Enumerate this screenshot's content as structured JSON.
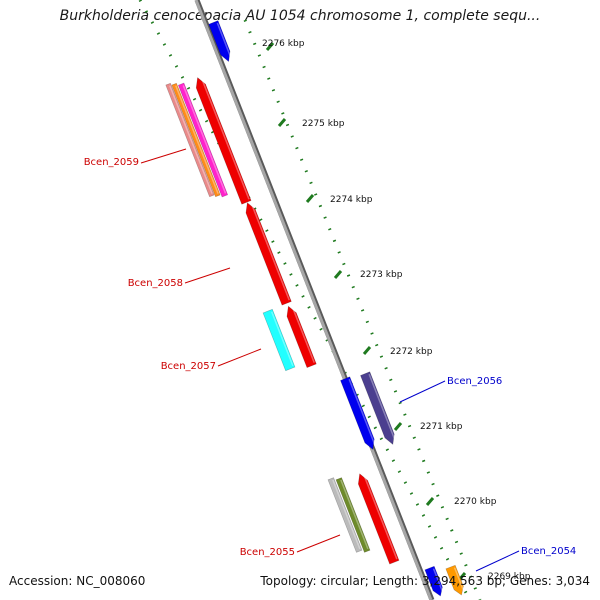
{
  "title": "Burkholderia cenocepacia AU 1054 chromosome 1, complete sequ...",
  "footer": {
    "accession": "Accession: NC_008060",
    "summary": "Topology: circular; Length: 3,294,563 bp; Genes: 3,034"
  },
  "colors": {
    "backbone": "#8c8c8c",
    "tick": "#1f7a1f",
    "forward_label": "#cc0000",
    "reverse_label": "#0000cc"
  },
  "kbp_labels": [
    "2276 kbp",
    "2275 kbp",
    "2274 kbp",
    "2273 kbp",
    "2272 kbp",
    "2271 kbp",
    "2270 kbp",
    "2269 kbp"
  ],
  "gene_labels": [
    {
      "text": "Bcen_2059",
      "color": "#cc0000"
    },
    {
      "text": "Bcen_2058",
      "color": "#cc0000"
    },
    {
      "text": "Bcen_2057",
      "color": "#cc0000"
    },
    {
      "text": "Bcen_2056",
      "color": "#0000cc"
    },
    {
      "text": "Bcen_2055",
      "color": "#cc0000"
    },
    {
      "text": "Bcen_2054",
      "color": "#0000cc"
    }
  ],
  "features": [
    {
      "id": "blue-top",
      "strand": "reverse",
      "color": "#0000ee"
    },
    {
      "id": "2059-cds",
      "strand": "forward",
      "color": "#ee0000"
    },
    {
      "id": "2059-cog-1",
      "strand": "forward",
      "color": "#e98a8a"
    },
    {
      "id": "2059-cog-2",
      "strand": "forward",
      "color": "#ff8c1a"
    },
    {
      "id": "2059-cog-3",
      "strand": "forward",
      "color": "#ff22cc"
    },
    {
      "id": "2058-cds",
      "strand": "forward",
      "color": "#ee0000"
    },
    {
      "id": "2057-cds",
      "strand": "forward",
      "color": "#ee0000"
    },
    {
      "id": "2057-cog",
      "strand": "forward",
      "color": "#22ffff"
    },
    {
      "id": "2056-cds",
      "strand": "reverse",
      "color": "#0000ee"
    },
    {
      "id": "2056-cog",
      "strand": "reverse",
      "color": "#4b3f8f"
    },
    {
      "id": "2055-cds",
      "strand": "forward",
      "color": "#ee0000"
    },
    {
      "id": "2055-cog-1",
      "strand": "forward",
      "color": "#bbbbbb"
    },
    {
      "id": "2055-cog-2",
      "strand": "forward",
      "color": "#6e8b2a"
    },
    {
      "id": "2054-cds",
      "strand": "reverse",
      "color": "#0000ee"
    },
    {
      "id": "2054-cog",
      "strand": "reverse",
      "color": "#ff9900"
    }
  ]
}
